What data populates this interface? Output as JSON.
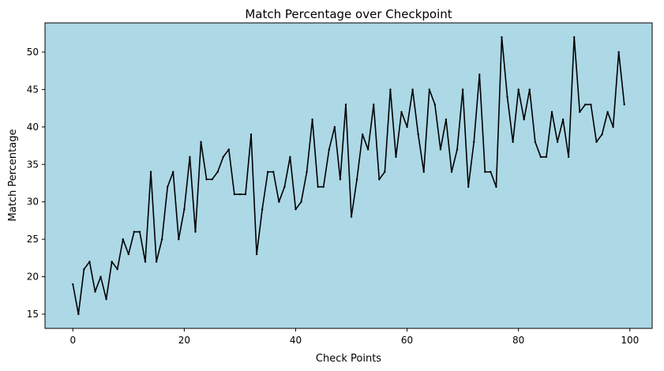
{
  "chart_data": {
    "type": "line",
    "title": "Match Percentage over Checkpoint",
    "xlabel": "Check Points",
    "ylabel": "Match Percentage",
    "xlim": [
      -5,
      104
    ],
    "ylim": [
      13.1,
      53.9
    ],
    "xticks": [
      0,
      20,
      40,
      60,
      80,
      100
    ],
    "yticks": [
      15,
      20,
      25,
      30,
      35,
      40,
      45,
      50
    ],
    "grid": false,
    "legend": "none",
    "colors": {
      "plot_background": "#add8e6",
      "line": "#000000",
      "figure_background": "#ffffff"
    },
    "series": [
      {
        "x": [
          0,
          1,
          2,
          3,
          4,
          5,
          6,
          7,
          8,
          9,
          10,
          11,
          12,
          13,
          14,
          15,
          16,
          17,
          18,
          19,
          20,
          21,
          22,
          23,
          24,
          25,
          26,
          27,
          28,
          29,
          30,
          31,
          32,
          33,
          34,
          35,
          36,
          37,
          38,
          39,
          40,
          41,
          42,
          43,
          44,
          45,
          46,
          47,
          48,
          49,
          50,
          51,
          52,
          53,
          54,
          55,
          56,
          57,
          58,
          59,
          60,
          61,
          62,
          63,
          64,
          65,
          66,
          67,
          68,
          69,
          70,
          71,
          72,
          73,
          74,
          75,
          76,
          77,
          78,
          79,
          80,
          81,
          82,
          83,
          84,
          85,
          86,
          87,
          88,
          89,
          90,
          91,
          92,
          93,
          94,
          95,
          96,
          97,
          98,
          99
        ],
        "values": [
          19,
          15,
          21,
          22,
          18,
          20,
          17,
          22,
          21,
          25,
          23,
          26,
          26,
          22,
          34,
          22,
          25,
          32,
          34,
          25,
          29,
          36,
          26,
          38,
          33,
          33,
          34,
          36,
          37,
          31,
          31,
          31,
          39,
          23,
          29,
          34,
          34,
          30,
          32,
          36,
          29,
          30,
          34,
          41,
          32,
          32,
          37,
          40,
          33,
          43,
          28,
          33,
          39,
          37,
          43,
          33,
          34,
          45,
          36,
          42,
          40,
          45,
          39,
          34,
          45,
          43,
          37,
          41,
          34,
          37,
          45,
          32,
          38,
          47,
          34,
          34,
          32,
          52,
          44,
          38,
          45,
          41,
          45,
          38,
          36,
          36,
          42,
          38,
          41,
          36,
          52,
          42,
          43,
          43,
          38,
          39,
          42,
          40,
          50,
          43
        ]
      }
    ]
  }
}
